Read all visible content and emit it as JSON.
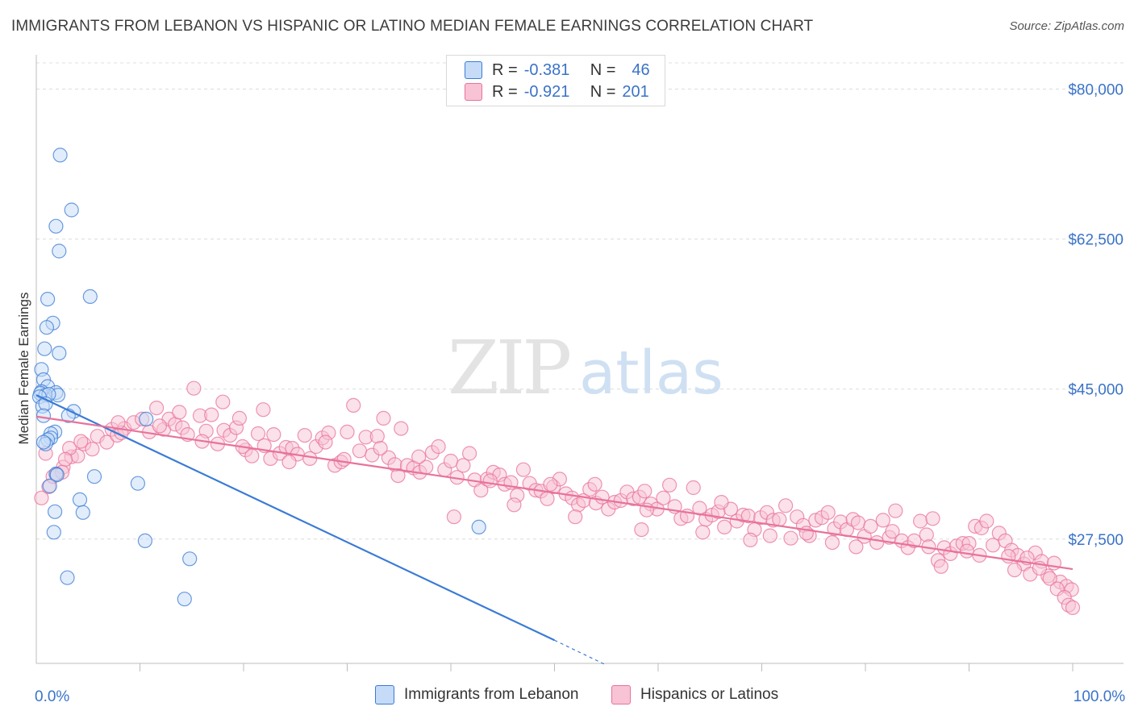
{
  "title": "IMMIGRANTS FROM LEBANON VS HISPANIC OR LATINO MEDIAN FEMALE EARNINGS CORRELATION CHART",
  "source": "Source: ZipAtlas.com",
  "watermark": {
    "zip": "ZIP",
    "atlas": "atlas"
  },
  "colors": {
    "blue": "#3a7bd5",
    "blue_fill": "#c5dbf7",
    "pink": "#e8729a",
    "pink_fill": "#f8c3d4",
    "value_text": "#3a73c9"
  },
  "legend": {
    "rows": [
      {
        "r_label": "R =",
        "r_value": "-0.381",
        "n_label": "N =",
        "n_value": "46",
        "color": "blue"
      },
      {
        "r_label": "R =",
        "r_value": "-0.921",
        "n_label": "N =",
        "n_value": "201",
        "color": "pink"
      }
    ]
  },
  "bottom_legend": [
    {
      "label": "Immigrants from Lebanon",
      "color": "blue"
    },
    {
      "label": "Hispanics or Latinos",
      "color": "pink"
    }
  ],
  "chart_data": {
    "type": "scatter",
    "title": "IMMIGRANTS FROM LEBANON VS HISPANIC OR LATINO MEDIAN FEMALE EARNINGS CORRELATION CHART",
    "xlabel": "",
    "ylabel": "Median Female Earnings",
    "xlim": [
      0,
      100
    ],
    "ylim": [
      13000,
      84000
    ],
    "x_tick_labels": [
      {
        "value": 0,
        "label": "0.0%"
      },
      {
        "value": 100,
        "label": "100.0%"
      }
    ],
    "y_ticks": [
      {
        "value": 80000,
        "label": "$80,000"
      },
      {
        "value": 62500,
        "label": "$62,500"
      },
      {
        "value": 45000,
        "label": "$45,000"
      },
      {
        "value": 27500,
        "label": "$27,500"
      }
    ],
    "grid": true,
    "legend_position": "top-center",
    "series": [
      {
        "name": "Immigrants from Lebanon",
        "color": "blue",
        "R": -0.381,
        "N": 46,
        "trend": {
          "x": [
            0,
            50
          ],
          "y": [
            44300,
            15700
          ],
          "dashed_to": [
            55,
            12800
          ]
        },
        "points": [
          [
            2.3,
            72300
          ],
          [
            3.4,
            65900
          ],
          [
            1.9,
            64000
          ],
          [
            2.2,
            61100
          ],
          [
            5.2,
            55800
          ],
          [
            1.1,
            55500
          ],
          [
            1.6,
            52700
          ],
          [
            1.0,
            52200
          ],
          [
            0.8,
            49700
          ],
          [
            2.2,
            49200
          ],
          [
            0.5,
            47300
          ],
          [
            0.7,
            46100
          ],
          [
            1.1,
            45300
          ],
          [
            0.5,
            44700
          ],
          [
            1.9,
            44600
          ],
          [
            0.4,
            44500
          ],
          [
            0.9,
            44300
          ],
          [
            2.1,
            44300
          ],
          [
            1.2,
            44400
          ],
          [
            0.3,
            44100
          ],
          [
            0.6,
            43000
          ],
          [
            0.9,
            43300
          ],
          [
            3.6,
            42400
          ],
          [
            3.1,
            41900
          ],
          [
            0.7,
            41900
          ],
          [
            10.6,
            41500
          ],
          [
            1.8,
            40000
          ],
          [
            1.4,
            39800
          ],
          [
            1.4,
            39300
          ],
          [
            1.1,
            39100
          ],
          [
            0.9,
            38600
          ],
          [
            0.7,
            38800
          ],
          [
            1.9,
            35100
          ],
          [
            2.0,
            35000
          ],
          [
            5.6,
            34800
          ],
          [
            9.8,
            34000
          ],
          [
            1.3,
            33700
          ],
          [
            4.2,
            32100
          ],
          [
            1.8,
            30700
          ],
          [
            4.5,
            30600
          ],
          [
            42.7,
            28900
          ],
          [
            1.7,
            28300
          ],
          [
            10.5,
            27300
          ],
          [
            14.8,
            25200
          ],
          [
            3.0,
            23000
          ],
          [
            14.3,
            20500
          ]
        ]
      },
      {
        "name": "Hispanics or Latinos",
        "color": "pink",
        "R": -0.921,
        "N": 201,
        "trend": {
          "x": [
            0,
            100
          ],
          "y": [
            41800,
            24000
          ]
        },
        "points": [
          [
            0.5,
            32300
          ],
          [
            1.2,
            33600
          ],
          [
            1.6,
            34800
          ],
          [
            2.0,
            35100
          ],
          [
            2.6,
            35900
          ],
          [
            3.4,
            37100
          ],
          [
            4.0,
            37200
          ],
          [
            3.2,
            38100
          ],
          [
            4.6,
            38600
          ],
          [
            5.4,
            38000
          ],
          [
            5.9,
            39500
          ],
          [
            6.8,
            38800
          ],
          [
            7.3,
            40300
          ],
          [
            7.8,
            39600
          ],
          [
            8.5,
            40400
          ],
          [
            9.4,
            41100
          ],
          [
            10.2,
            41500
          ],
          [
            10.9,
            40000
          ],
          [
            11.6,
            42800
          ],
          [
            12.3,
            40300
          ],
          [
            12.8,
            41500
          ],
          [
            13.4,
            40900
          ],
          [
            14.1,
            40500
          ],
          [
            14.6,
            39700
          ],
          [
            15.2,
            45100
          ],
          [
            15.8,
            41900
          ],
          [
            16.4,
            40100
          ],
          [
            16.9,
            42000
          ],
          [
            17.5,
            38600
          ],
          [
            18.1,
            40200
          ],
          [
            18.7,
            39600
          ],
          [
            19.3,
            40500
          ],
          [
            19.6,
            41600
          ],
          [
            20.2,
            37900
          ],
          [
            20.8,
            37200
          ],
          [
            21.4,
            39800
          ],
          [
            22.0,
            38400
          ],
          [
            22.6,
            36900
          ],
          [
            22.9,
            39700
          ],
          [
            23.5,
            37500
          ],
          [
            24.1,
            38200
          ],
          [
            24.7,
            38100
          ],
          [
            25.2,
            37400
          ],
          [
            25.9,
            39600
          ],
          [
            26.4,
            36900
          ],
          [
            27.0,
            38300
          ],
          [
            27.6,
            39300
          ],
          [
            28.2,
            39900
          ],
          [
            28.8,
            36100
          ],
          [
            29.4,
            36500
          ],
          [
            30.0,
            40000
          ],
          [
            30.6,
            43100
          ],
          [
            31.2,
            37800
          ],
          [
            31.8,
            39400
          ],
          [
            32.4,
            37300
          ],
          [
            32.9,
            39500
          ],
          [
            33.5,
            41600
          ],
          [
            34.0,
            37000
          ],
          [
            34.6,
            36200
          ],
          [
            35.2,
            40400
          ],
          [
            35.8,
            36100
          ],
          [
            36.4,
            35800
          ],
          [
            37.0,
            35300
          ],
          [
            37.6,
            35900
          ],
          [
            38.2,
            37600
          ],
          [
            38.8,
            38300
          ],
          [
            39.4,
            35600
          ],
          [
            40.0,
            36600
          ],
          [
            40.6,
            34700
          ],
          [
            41.2,
            36100
          ],
          [
            41.8,
            37500
          ],
          [
            42.3,
            34400
          ],
          [
            42.9,
            33200
          ],
          [
            43.5,
            34500
          ],
          [
            44.1,
            35300
          ],
          [
            44.7,
            35000
          ],
          [
            45.2,
            33900
          ],
          [
            45.8,
            34100
          ],
          [
            46.4,
            32600
          ],
          [
            47.0,
            35600
          ],
          [
            47.6,
            34000
          ],
          [
            48.2,
            33200
          ],
          [
            48.7,
            33100
          ],
          [
            49.3,
            32200
          ],
          [
            49.9,
            33600
          ],
          [
            50.5,
            34500
          ],
          [
            51.1,
            32800
          ],
          [
            51.7,
            32300
          ],
          [
            52.3,
            31500
          ],
          [
            52.8,
            32000
          ],
          [
            53.4,
            33300
          ],
          [
            54.0,
            31700
          ],
          [
            54.6,
            32400
          ],
          [
            55.2,
            31000
          ],
          [
            55.8,
            31800
          ],
          [
            56.4,
            32000
          ],
          [
            57.0,
            33000
          ],
          [
            57.6,
            32200
          ],
          [
            58.2,
            32400
          ],
          [
            58.7,
            33100
          ],
          [
            59.3,
            31600
          ],
          [
            59.9,
            31000
          ],
          [
            60.5,
            32300
          ],
          [
            61.1,
            33800
          ],
          [
            61.6,
            31300
          ],
          [
            62.2,
            29900
          ],
          [
            62.8,
            30200
          ],
          [
            63.4,
            33500
          ],
          [
            64.0,
            31100
          ],
          [
            64.6,
            29800
          ],
          [
            65.2,
            30300
          ],
          [
            65.8,
            30700
          ],
          [
            66.4,
            28900
          ],
          [
            67.0,
            31000
          ],
          [
            67.6,
            29600
          ],
          [
            68.2,
            30300
          ],
          [
            68.7,
            30200
          ],
          [
            69.3,
            28600
          ],
          [
            69.9,
            30000
          ],
          [
            70.5,
            30600
          ],
          [
            71.1,
            29700
          ],
          [
            71.7,
            29800
          ],
          [
            72.3,
            31400
          ],
          [
            72.8,
            27600
          ],
          [
            73.4,
            30100
          ],
          [
            74.0,
            29100
          ],
          [
            74.6,
            27900
          ],
          [
            75.2,
            29700
          ],
          [
            75.8,
            30000
          ],
          [
            76.4,
            30600
          ],
          [
            77.0,
            28700
          ],
          [
            77.6,
            29500
          ],
          [
            78.2,
            28600
          ],
          [
            78.8,
            29800
          ],
          [
            79.3,
            29400
          ],
          [
            79.9,
            27800
          ],
          [
            80.5,
            29000
          ],
          [
            81.1,
            27100
          ],
          [
            81.7,
            29700
          ],
          [
            82.3,
            27700
          ],
          [
            82.9,
            30800
          ],
          [
            83.5,
            27300
          ],
          [
            84.1,
            26500
          ],
          [
            84.7,
            27300
          ],
          [
            85.3,
            29600
          ],
          [
            85.9,
            28000
          ],
          [
            86.5,
            29900
          ],
          [
            87.0,
            25000
          ],
          [
            87.6,
            26500
          ],
          [
            88.2,
            25800
          ],
          [
            88.8,
            26700
          ],
          [
            89.4,
            27000
          ],
          [
            90.0,
            27000
          ],
          [
            90.6,
            29000
          ],
          [
            91.2,
            28800
          ],
          [
            91.7,
            29600
          ],
          [
            92.3,
            26800
          ],
          [
            92.9,
            28200
          ],
          [
            93.5,
            27300
          ],
          [
            94.1,
            26200
          ],
          [
            94.7,
            25600
          ],
          [
            95.3,
            24600
          ],
          [
            95.9,
            23400
          ],
          [
            96.4,
            25900
          ],
          [
            97.0,
            24900
          ],
          [
            97.6,
            23200
          ],
          [
            98.2,
            24700
          ],
          [
            98.8,
            22500
          ],
          [
            99.4,
            22000
          ],
          [
            99.9,
            21600
          ],
          [
            0.9,
            37500
          ],
          [
            2.8,
            36800
          ],
          [
            8.2,
            39900
          ],
          [
            13.8,
            42300
          ],
          [
            18.0,
            43500
          ],
          [
            21.9,
            42600
          ],
          [
            27.9,
            38800
          ],
          [
            33.2,
            38100
          ],
          [
            36.9,
            37100
          ],
          [
            43.8,
            34300
          ],
          [
            49.6,
            33900
          ],
          [
            53.9,
            33900
          ],
          [
            58.9,
            30900
          ],
          [
            66.1,
            31800
          ],
          [
            70.8,
            27900
          ],
          [
            76.8,
            27100
          ],
          [
            82.6,
            28400
          ],
          [
            86.1,
            26600
          ],
          [
            89.8,
            26100
          ],
          [
            93.8,
            25500
          ],
          [
            96.8,
            24100
          ],
          [
            97.8,
            22900
          ],
          [
            98.5,
            21700
          ],
          [
            99.2,
            20700
          ],
          [
            99.6,
            19800
          ],
          [
            100.0,
            19500
          ],
          [
            95.6,
            25300
          ],
          [
            94.4,
            23900
          ],
          [
            91.0,
            25600
          ],
          [
            87.3,
            24300
          ],
          [
            79.1,
            26600
          ],
          [
            74.3,
            28200
          ],
          [
            68.9,
            27400
          ],
          [
            64.3,
            28300
          ],
          [
            58.4,
            28600
          ],
          [
            52.0,
            30100
          ],
          [
            46.1,
            31500
          ],
          [
            40.3,
            30100
          ],
          [
            34.9,
            34900
          ],
          [
            29.7,
            36800
          ],
          [
            24.4,
            36500
          ],
          [
            19.9,
            38300
          ],
          [
            16.0,
            38900
          ],
          [
            11.9,
            40700
          ],
          [
            7.9,
            41100
          ],
          [
            4.3,
            38900
          ],
          [
            2.5,
            35300
          ]
        ]
      }
    ]
  }
}
